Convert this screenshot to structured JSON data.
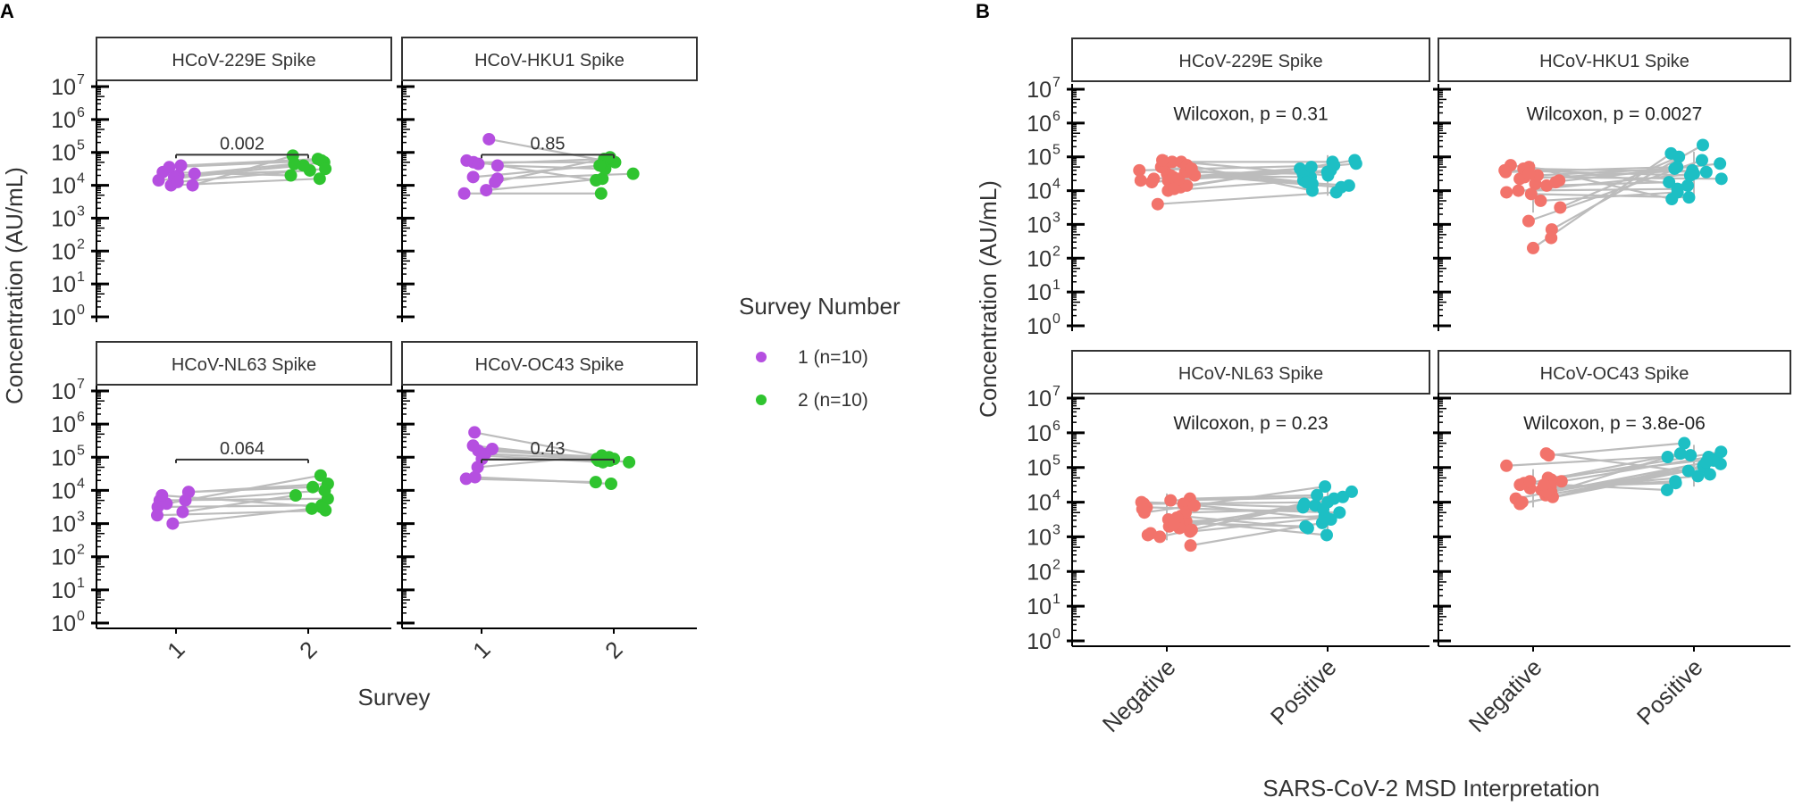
{
  "colors": {
    "survey1": "#b54fe0",
    "survey2": "#2fc42f",
    "negative": "#f2736b",
    "positive": "#1dbfc4",
    "pair_line": "#bcbcbc",
    "strip_fill": "#ffffff",
    "strip_border": "#333333",
    "axis": "#000000",
    "text": "#333333"
  },
  "chart_data": [
    {
      "panel_label": "A",
      "type": "scatter",
      "y_scale": "log10",
      "ylim": [
        0,
        7
      ],
      "y_ticks": [
        0,
        1,
        2,
        3,
        4,
        5,
        6,
        7
      ],
      "ylabel": "Concentration (AU/mL)",
      "xlabel": "Survey",
      "categories": [
        "1",
        "2"
      ],
      "legend": {
        "title": "Survey Number",
        "entries": [
          {
            "label": "1 (n=10)",
            "color_key": "survey1"
          },
          {
            "label": "2 (n=10)",
            "color_key": "survey2"
          }
        ]
      },
      "facets": [
        {
          "title": "HCoV-229E Spike",
          "annotation": "0.002",
          "annotation_log_y": 5.2,
          "series": [
            {
              "name": "1 (n=10)",
              "color_key": "survey1",
              "log_values": [
                4.0,
                4.15,
                4.3,
                4.0,
                4.25,
                4.6,
                4.4,
                4.55,
                4.1,
                4.35
              ]
            },
            {
              "name": "2 (n=10)",
              "color_key": "survey2",
              "log_values": [
                4.9,
                4.7,
                4.45,
                4.2,
                4.6,
                4.8,
                4.3,
                4.75,
                4.5,
                4.65
              ]
            }
          ]
        },
        {
          "title": "HCoV-HKU1 Spike",
          "annotation": "0.85",
          "annotation_log_y": 5.2,
          "series": [
            {
              "name": "1 (n=10)",
              "color_key": "survey1",
              "log_values": [
                4.65,
                4.7,
                4.2,
                3.85,
                4.6,
                5.4,
                4.75,
                4.1,
                3.75,
                4.25
              ]
            },
            {
              "name": "2 (n=10)",
              "color_key": "survey2",
              "log_values": [
                4.8,
                4.7,
                4.35,
                4.2,
                4.5,
                4.75,
                4.15,
                4.85,
                3.75,
                4.6
              ]
            }
          ]
        },
        {
          "title": "HCoV-NL63 Spike",
          "annotation": "0.064",
          "annotation_log_y": 5.2,
          "series": [
            {
              "name": "1 (n=10)",
              "color_key": "survey1",
              "log_values": [
                3.95,
                3.5,
                3.25,
                3.95,
                3.7,
                3.6,
                3.85,
                3.35,
                3.0,
                3.7
              ]
            },
            {
              "name": "2 (n=10)",
              "color_key": "survey2",
              "log_values": [
                4.1,
                3.55,
                3.4,
                4.2,
                3.75,
                4.45,
                3.5,
                3.85,
                3.45,
                4.0
              ]
            }
          ]
        },
        {
          "title": "HCoV-OC43 Spike",
          "annotation": "0.43",
          "annotation_log_y": 5.2,
          "series": [
            {
              "name": "1 (n=10)",
              "color_key": "survey1",
              "log_values": [
                5.35,
                5.2,
                4.95,
                4.35,
                5.1,
                5.75,
                5.05,
                4.7,
                4.4,
                5.25
              ]
            },
            {
              "name": "2 (n=10)",
              "color_key": "survey2",
              "log_values": [
                4.85,
                5.0,
                4.9,
                4.25,
                4.95,
                4.95,
                4.85,
                5.05,
                4.2,
                4.9
              ]
            }
          ]
        }
      ]
    },
    {
      "panel_label": "B",
      "type": "scatter",
      "y_scale": "log10",
      "ylim": [
        0,
        7
      ],
      "y_ticks": [
        0,
        1,
        2,
        3,
        4,
        5,
        6,
        7
      ],
      "ylabel": "Concentration (AU/mL)",
      "xlabel": "SARS-CoV-2 MSD Interpretation",
      "categories": [
        "Negative",
        "Positive"
      ],
      "facets": [
        {
          "title": "HCoV-229E Spike",
          "annotation": "Wilcoxon, p = 0.31",
          "annotation_log_y": 6.3,
          "series": [
            {
              "name": "Negative",
              "color_key": "negative",
              "log_values": [
                4.1,
                4.45,
                4.7,
                4.35,
                4.55,
                4.85,
                4.5,
                4.3,
                4.0,
                4.6,
                4.85,
                4.4,
                4.7,
                4.15,
                3.6,
                4.9,
                4.25,
                4.45,
                4.35,
                4.55,
                4.75,
                4.3,
                4.05,
                4.65
              ]
            },
            {
              "name": "Positive",
              "color_key": "positive",
              "log_values": [
                4.9,
                4.4,
                4.2,
                4.65,
                4.5,
                4.85,
                4.15,
                4.6,
                4.3,
                4.75,
                4.0,
                4.55,
                4.25,
                4.7,
                3.95,
                4.45,
                4.8,
                4.1
              ]
            }
          ]
        },
        {
          "title": "HCoV-HKU1 Spike",
          "annotation": "Wilcoxon, p = 0.0027",
          "annotation_log_y": 6.3,
          "series": [
            {
              "name": "Negative",
              "color_key": "negative",
              "log_values": [
                2.85,
                4.2,
                3.95,
                4.75,
                4.35,
                3.5,
                4.7,
                4.6,
                2.3,
                4.45,
                4.15,
                3.7,
                4.55,
                3.1,
                4.4,
                4.0,
                3.9,
                4.65,
                4.25,
                2.6,
                4.5,
                4.3
              ]
            },
            {
              "name": "Positive",
              "color_key": "positive",
              "log_values": [
                5.35,
                4.8,
                4.5,
                4.15,
                4.6,
                5.0,
                3.75,
                4.45,
                5.1,
                4.65,
                4.25,
                3.95,
                4.7,
                4.9,
                4.35,
                4.05,
                3.8,
                4.55
              ]
            }
          ]
        },
        {
          "title": "HCoV-NL63 Spike",
          "annotation": "Wilcoxon, p = 0.23",
          "annotation_log_y": 6.3,
          "series": [
            {
              "name": "Negative",
              "color_key": "negative",
              "log_values": [
                3.7,
                4.1,
                3.3,
                3.95,
                3.0,
                3.6,
                4.0,
                3.45,
                3.2,
                3.85,
                2.75,
                3.95,
                3.5,
                3.15,
                4.05,
                3.4,
                3.7,
                3.25,
                3.9,
                3.1,
                3.55,
                3.05,
                3.8,
                3.35
              ]
            },
            {
              "name": "Positive",
              "color_key": "positive",
              "log_values": [
                4.45,
                4.2,
                3.9,
                3.5,
                4.1,
                3.25,
                3.85,
                3.6,
                4.3,
                3.7,
                3.4,
                4.0,
                3.05,
                3.55,
                4.15,
                3.3,
                3.8,
                3.95
              ]
            }
          ]
        },
        {
          "title": "HCoV-OC43 Spike",
          "annotation": "Wilcoxon, p = 3.8e-06",
          "annotation_log_y": 6.3,
          "series": [
            {
              "name": "Negative",
              "color_key": "negative",
              "log_values": [
                5.35,
                4.6,
                4.3,
                4.5,
                3.95,
                4.7,
                4.4,
                4.2,
                5.05,
                4.55,
                4.15,
                4.35,
                4.65,
                3.95,
                4.45,
                4.25,
                5.4,
                4.1,
                4.6,
                4.3,
                4.5,
                4.0
              ]
            },
            {
              "name": "Positive",
              "color_key": "positive",
              "log_values": [
                5.7,
                5.3,
                5.1,
                5.4,
                4.9,
                5.25,
                4.6,
                5.0,
                5.35,
                4.35,
                5.2,
                4.75,
                5.45,
                5.05,
                4.55,
                5.3,
                4.8,
                5.15
              ]
            }
          ]
        }
      ]
    }
  ]
}
